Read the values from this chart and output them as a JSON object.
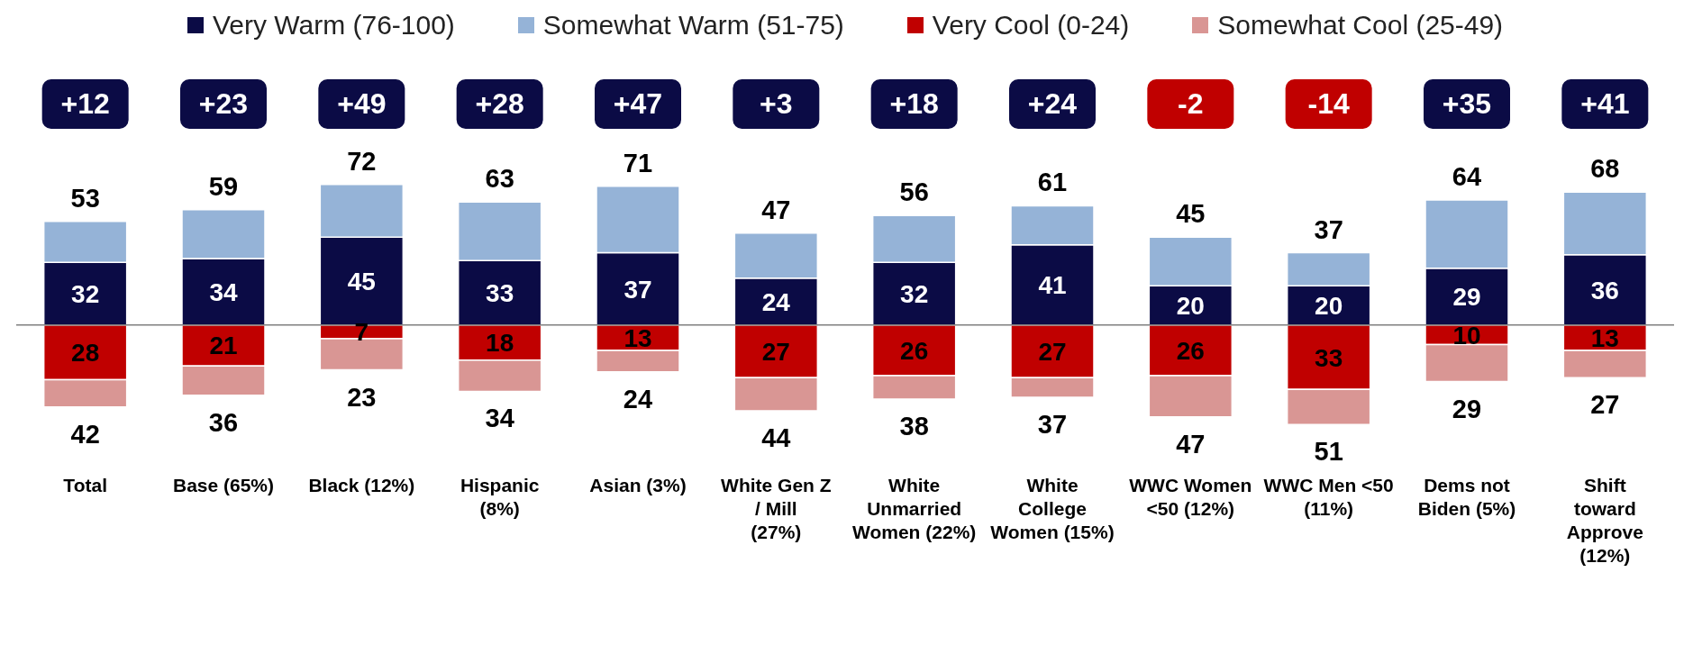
{
  "chart_data": {
    "type": "bar",
    "stacked": true,
    "legend": "top",
    "grid": false,
    "categories": [
      "Total",
      "Base (65%)",
      "Black (12%)",
      "Hispanic (8%)",
      "Asian (3%)",
      "White Gen Z / Mill (27%)",
      "White Unmarried Women (22%)",
      "White College Women (15%)",
      "WWC Women <50 (12%)",
      "WWC Men <50 (11%)",
      "Dems not Biden (5%)",
      "Shift toward Approve (12%)"
    ],
    "series": [
      {
        "name": "Very Warm (76-100)",
        "color": "#0b0b45",
        "values": [
          32,
          34,
          45,
          33,
          37,
          24,
          32,
          41,
          20,
          20,
          29,
          36
        ],
        "value_labels": [
          "32",
          "34",
          "45",
          "33",
          "37",
          "24",
          "32",
          "41",
          "20",
          "20",
          "29",
          "36"
        ]
      },
      {
        "name": "Somewhat Warm (51-75)",
        "color": "#95b3d7",
        "values": [
          21,
          25,
          27,
          30,
          34,
          23,
          24,
          20,
          25,
          17,
          35,
          32
        ]
      },
      {
        "name": "Very Cool (0-24)",
        "color": "#c00000",
        "values": [
          -28,
          -21,
          -7,
          -18,
          -13,
          -27,
          -26,
          -27,
          -26,
          -33,
          -10,
          -13
        ]
      },
      {
        "name": "Somewhat Cool (25-49)",
        "color": "#d99694",
        "values": [
          -14,
          -15,
          -16,
          -16,
          -11,
          -17,
          -12,
          -10,
          -21,
          -18,
          -19,
          -14
        ]
      }
    ],
    "ref_lines": [
      {
        "axis": "y",
        "value": 0,
        "color": "#808080"
      }
    ],
    "annotations": [
      "+12",
      "+23",
      "+49",
      "+28",
      "+47",
      "+3",
      "+18",
      "+24",
      "-2",
      "-14",
      "+35",
      "+41",
      {
        "text": "28",
        "x": "Total",
        "y": -28
      },
      {
        "text": "21",
        "x": "Base (65%)",
        "y": -21
      },
      {
        "text": "7",
        "x": "Black (12%)",
        "y": -7
      },
      {
        "text": "18",
        "x": "Hispanic (8%)",
        "y": -18
      },
      {
        "text": "13",
        "x": "Asian (3%)",
        "y": -13
      },
      {
        "text": "27",
        "x": "White Gen Z / Mill (27%)",
        "y": -27
      },
      {
        "text": "26",
        "x": "White Unmarried Women (22%)",
        "y": -26
      },
      {
        "text": "27",
        "x": "White College Women (15%)",
        "y": -27
      },
      {
        "text": "26",
        "x": "WWC Women <50 (12%)",
        "y": -26
      },
      {
        "text": "33",
        "x": "WWC Men <50 (11%)",
        "y": -33
      },
      {
        "text": "10",
        "x": "Dems not Biden (5%)",
        "y": -10
      },
      {
        "text": "13",
        "x": "Shift toward Approve (12%)",
        "y": -13
      },
      {
        "text": "53",
        "x": "Total",
        "y": 53
      },
      {
        "text": "59",
        "x": "Base (65%)",
        "y": 59
      },
      {
        "text": "72",
        "x": "Black (12%)",
        "y": 72
      },
      {
        "text": "63",
        "x": "Hispanic (8%)",
        "y": 63
      },
      {
        "text": "71",
        "x": "Asian (3%)",
        "y": 71
      },
      {
        "text": "47",
        "x": "White Gen Z / Mill (27%)",
        "y": 47
      },
      {
        "text": "56",
        "x": "White Unmarried Women (22%)",
        "y": 56
      },
      {
        "text": "61",
        "x": "White College Women (15%)",
        "y": 61
      },
      {
        "text": "45",
        "x": "WWC Women <50 (12%)",
        "y": 45
      },
      {
        "text": "37",
        "x": "WWC Men <50 (11%)",
        "y": 37
      },
      {
        "text": "64",
        "x": "Dems not Biden (5%)",
        "y": 64
      },
      {
        "text": "68",
        "x": "Shift toward Approve (12%)",
        "y": 68
      },
      {
        "text": "42",
        "x": "Total",
        "y": -42
      },
      {
        "text": "36",
        "x": "Base (65%)",
        "y": -36
      },
      {
        "text": "23",
        "x": "Black (12%)",
        "y": -23
      },
      {
        "text": "34",
        "x": "Hispanic (8%)",
        "y": -34
      },
      {
        "text": "24",
        "x": "Asian (3%)",
        "y": -24
      },
      {
        "text": "44",
        "x": "White Gen Z / Mill (27%)",
        "y": -44
      },
      {
        "text": "38",
        "x": "White Unmarried Women (22%)",
        "y": -38
      },
      {
        "text": "37",
        "x": "White College Women (15%)",
        "y": -37
      },
      {
        "text": "47",
        "x": "WWC Women <50 (12%)",
        "y": -47
      },
      {
        "text": "51",
        "x": "WWC Men <50 (11%)",
        "y": -51
      },
      {
        "text": "29",
        "x": "Dems not Biden (5%)",
        "y": -29
      },
      {
        "text": "27",
        "x": "Shift toward Approve (12%)",
        "y": -27
      }
    ]
  }
}
